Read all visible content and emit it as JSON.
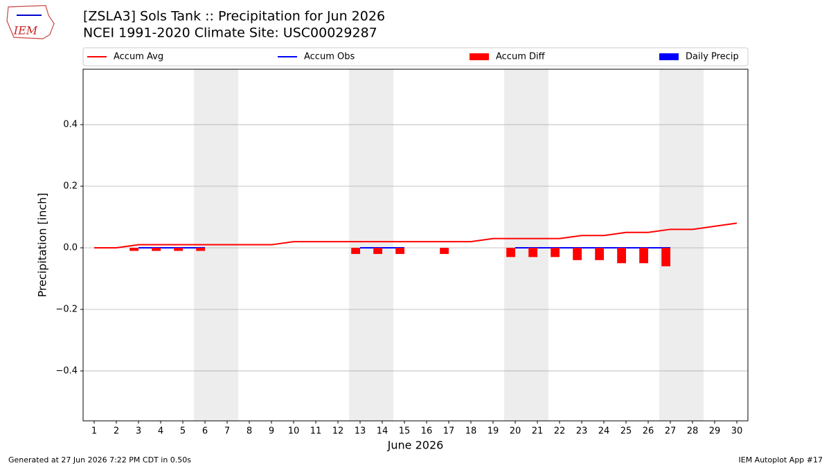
{
  "logo_text": "IEM",
  "footer": {
    "left": "Generated at 27 Jun 2026 7:22 PM CDT in 0.50s",
    "right": "IEM Autoplot App #17"
  },
  "chart_data": {
    "type": "line",
    "title": "[ZSLA3] Sols Tank :: Precipitation for Jun 2026",
    "subtitle": "NCEI 1991-2020 Climate Site: USC00029287",
    "x_label": "June 2026",
    "y_label": "Precipitation [inch]",
    "x": [
      1,
      2,
      3,
      4,
      5,
      6,
      7,
      8,
      9,
      10,
      11,
      12,
      13,
      14,
      15,
      16,
      17,
      18,
      19,
      20,
      21,
      22,
      23,
      24,
      25,
      26,
      27,
      28,
      29,
      30
    ],
    "xlim": [
      0.5,
      30.5
    ],
    "xticks": [
      1,
      2,
      3,
      4,
      5,
      6,
      7,
      8,
      9,
      10,
      11,
      12,
      13,
      14,
      15,
      16,
      17,
      18,
      19,
      20,
      21,
      22,
      23,
      24,
      25,
      26,
      27,
      28,
      29,
      30
    ],
    "ylim": [
      -0.562,
      0.58
    ],
    "yticks": [
      {
        "value": -0.4,
        "label": "−0.4"
      },
      {
        "value": -0.2,
        "label": "−0.2"
      },
      {
        "value": 0,
        "label": "0.0"
      },
      0.2,
      0.4
    ],
    "grid": true,
    "weekend_days": [
      6,
      7,
      13,
      14,
      20,
      21,
      27,
      28
    ],
    "series": [
      {
        "name": "Accum Avg",
        "kind": "line",
        "color": "#ff0000",
        "values": [
          0,
          0,
          0.01,
          0.01,
          0.01,
          0.01,
          0.01,
          0.01,
          0.01,
          0.02,
          0.02,
          0.02,
          0.02,
          0.02,
          0.02,
          0.02,
          0.02,
          0.02,
          0.03,
          0.03,
          0.03,
          0.03,
          0.04,
          0.04,
          0.05,
          0.05,
          0.06,
          0.06,
          0.07,
          0.08
        ]
      },
      {
        "name": "Accum Obs",
        "kind": "line",
        "color": "#0000ff",
        "values": [
          null,
          null,
          0,
          0,
          0,
          0,
          null,
          null,
          null,
          null,
          null,
          null,
          0,
          0,
          0,
          null,
          0,
          null,
          null,
          0,
          0,
          0,
          0,
          0,
          0,
          0,
          0,
          null,
          null,
          null
        ]
      },
      {
        "name": "Accum Diff",
        "kind": "bar",
        "color": "#ff0000",
        "values": [
          null,
          null,
          -0.01,
          -0.01,
          -0.01,
          -0.01,
          null,
          null,
          null,
          null,
          null,
          null,
          -0.02,
          -0.02,
          -0.02,
          null,
          -0.02,
          null,
          null,
          -0.03,
          -0.03,
          -0.03,
          -0.04,
          -0.04,
          -0.05,
          -0.05,
          -0.06,
          null,
          null,
          null
        ]
      },
      {
        "name": "Daily Precip",
        "kind": "bar",
        "color": "#0000ff",
        "values": [
          null,
          null,
          0,
          0,
          0,
          0,
          null,
          null,
          null,
          null,
          null,
          null,
          0,
          0,
          0,
          null,
          0,
          null,
          null,
          0,
          0,
          0,
          0,
          0,
          0,
          0,
          0,
          null,
          null,
          null
        ]
      }
    ]
  }
}
